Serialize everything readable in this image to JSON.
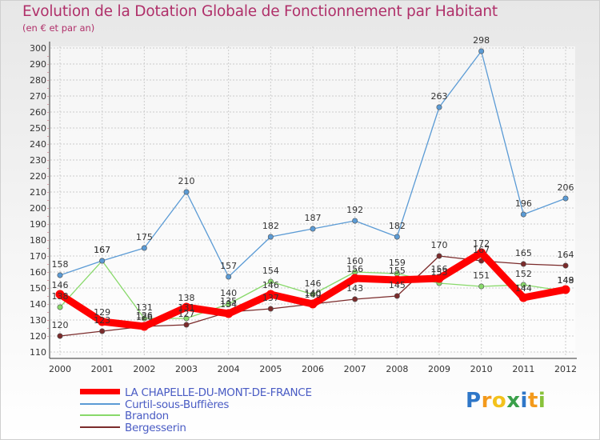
{
  "header": {
    "title": "Evolution de la Dotation Globale de Fonctionnement par Habitant",
    "subtitle": "(en € et par an)"
  },
  "brand": {
    "letters": [
      "P",
      "r",
      "o",
      "x",
      "i",
      "t",
      "i"
    ]
  },
  "colors": {
    "title": "#b0306a",
    "legend_text": "#4a5cc4",
    "grid": "#cccccc",
    "series": [
      "#ff0000",
      "#5b9bd5",
      "#88d96a",
      "#7b2b2b"
    ],
    "logo": [
      "#2f77c8",
      "#f39a1c",
      "#f3c21c",
      "#3aa04a",
      "#2f77c8",
      "#f39a1c",
      "#88c23a"
    ]
  },
  "chart_data": {
    "type": "line",
    "title": "Evolution de la Dotation Globale de Fonctionnement par Habitant",
    "subtitle": "(en € et par an)",
    "xlabel": "",
    "ylabel": "",
    "ylim": [
      110,
      300
    ],
    "yticks": [
      110,
      120,
      130,
      140,
      150,
      160,
      170,
      180,
      190,
      200,
      210,
      220,
      230,
      240,
      250,
      260,
      270,
      280,
      290,
      300
    ],
    "categories": [
      "2000",
      "2001",
      "2002",
      "2003",
      "2004",
      "2005",
      "2006",
      "2007",
      "2008",
      "2009",
      "2010",
      "2011",
      "2012"
    ],
    "grid": true,
    "legend_position": "bottom-left",
    "series": [
      {
        "name": "LA CHAPELLE-DU-MONT-DE-FRANCE",
        "values": [
          146,
          129,
          126,
          138,
          134,
          146,
          140,
          156,
          155,
          156,
          172,
          144,
          149
        ]
      },
      {
        "name": "Curtil-sous-Buffières",
        "values": [
          158,
          167,
          175,
          210,
          157,
          182,
          187,
          192,
          182,
          263,
          298,
          196,
          206
        ]
      },
      {
        "name": "Brandon",
        "values": [
          138,
          167,
          131,
          131,
          140,
          154,
          146,
          160,
          159,
          153,
          151,
          152,
          148
        ]
      },
      {
        "name": "Bergesserin",
        "values": [
          120,
          123,
          126,
          127,
          135,
          137,
          140,
          143,
          145,
          170,
          167,
          165,
          164
        ]
      }
    ]
  }
}
